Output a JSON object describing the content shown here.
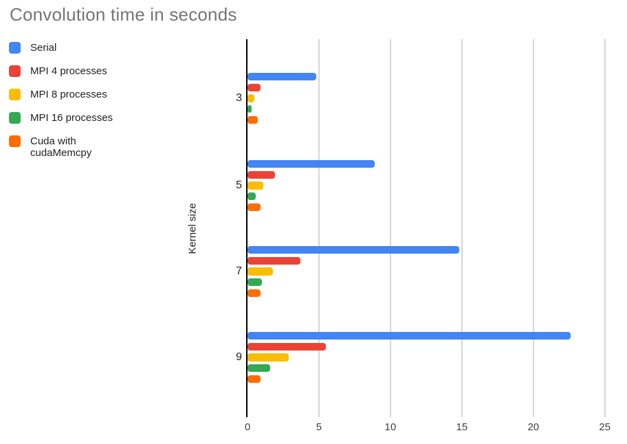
{
  "title": "Convolution time in seconds",
  "chart_data": {
    "type": "bar",
    "orientation": "horizontal",
    "title": "Convolution time in seconds",
    "xlabel": "",
    "ylabel": "Kernel size",
    "categories": [
      "3",
      "5",
      "7",
      "9"
    ],
    "series": [
      {
        "name": "Serial",
        "color": "#4285F4",
        "values": [
          4.8,
          8.9,
          14.8,
          22.6
        ]
      },
      {
        "name": "MPI 4 processes",
        "color": "#EA4335",
        "values": [
          0.9,
          1.9,
          3.7,
          5.5
        ]
      },
      {
        "name": "MPI 8 processes",
        "color": "#FBBC04",
        "values": [
          0.5,
          1.1,
          1.8,
          2.9
        ]
      },
      {
        "name": "MPI 16 processes",
        "color": "#34A853",
        "values": [
          0.3,
          0.6,
          1.0,
          1.6
        ]
      },
      {
        "name": "Cuda with cudaMemcpy",
        "color": "#FF6D01",
        "values": [
          0.7,
          0.9,
          0.9,
          0.9
        ]
      }
    ],
    "xlim": [
      0,
      25
    ],
    "xticks": [
      0,
      5,
      10,
      15,
      20,
      25
    ],
    "grid": true,
    "legend_position": "top-left"
  },
  "colors": {
    "title_text": "#757575",
    "axis_line": "#000000",
    "gridline": "#d6d6d6",
    "tick_label": "#3c4043"
  }
}
